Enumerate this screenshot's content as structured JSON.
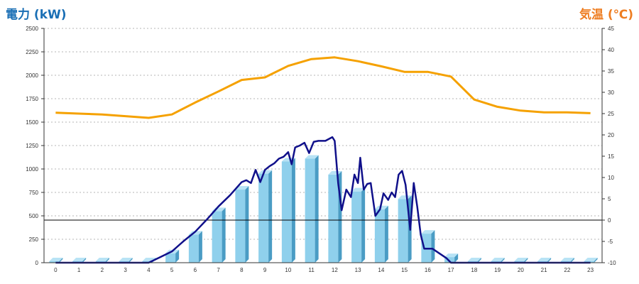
{
  "chart_data": {
    "type": "bar",
    "y_left_label": "電力 (kW)",
    "y_right_label": "気温 (℃)",
    "categories": [
      "0",
      "1",
      "2",
      "3",
      "4",
      "5",
      "6",
      "7",
      "8",
      "9",
      "10",
      "11",
      "12",
      "13",
      "14",
      "15",
      "16",
      "17",
      "18",
      "19",
      "20",
      "21",
      "22",
      "23"
    ],
    "y_left_ticks": [
      0,
      250,
      500,
      750,
      1000,
      1250,
      1500,
      1750,
      2000,
      2250,
      2500
    ],
    "y_right_ticks": [
      -10,
      -5,
      0,
      5,
      10,
      15,
      20,
      25,
      30,
      35,
      40,
      45
    ],
    "ylim_left": [
      0,
      2500
    ],
    "ylim_right": [
      -10,
      45
    ],
    "grid": true,
    "colors": {
      "bars": "#8fd0ec",
      "bars_side": "#4a9cc4",
      "bars_top": "#b8e3f5",
      "power_line": "#10108a",
      "temperature_line": "#f5a100",
      "left_axis_label": "#1a6fb5",
      "right_axis_label": "#ee7d21",
      "zero_line": "#000000"
    },
    "series": [
      {
        "type": "bar",
        "axis": "left",
        "values": [
          15,
          15,
          15,
          15,
          15,
          100,
          300,
          550,
          780,
          950,
          1080,
          1110,
          940,
          760,
          570,
          680,
          310,
          60,
          15,
          15,
          15,
          15,
          15,
          15
        ]
      },
      {
        "type": "line",
        "axis": "left",
        "x": [
          0,
          1,
          2,
          3,
          4,
          4.5,
          5,
          5.5,
          6,
          6.5,
          7,
          7.5,
          8,
          8.2,
          8.4,
          8.6,
          8.8,
          9,
          9.2,
          9.4,
          9.6,
          9.8,
          10,
          10.15,
          10.3,
          10.5,
          10.7,
          10.9,
          11.1,
          11.3,
          11.6,
          11.9,
          12,
          12.15,
          12.3,
          12.5,
          12.7,
          12.85,
          13,
          13.1,
          13.25,
          13.4,
          13.55,
          13.75,
          13.95,
          14.1,
          14.3,
          14.45,
          14.6,
          14.75,
          14.9,
          15.05,
          15.25,
          15.4,
          15.55,
          15.7,
          15.85,
          16,
          16.2,
          16.5,
          16.8,
          17,
          17.5,
          18,
          19,
          20,
          21,
          22,
          23
        ],
        "values": [
          0,
          0,
          0,
          0,
          0,
          60,
          120,
          230,
          330,
          460,
          600,
          720,
          860,
          880,
          850,
          990,
          860,
          990,
          1030,
          1060,
          1110,
          1130,
          1180,
          1050,
          1230,
          1250,
          1280,
          1170,
          1290,
          1300,
          1300,
          1340,
          1300,
          850,
          560,
          780,
          700,
          940,
          850,
          1120,
          780,
          840,
          850,
          500,
          570,
          740,
          670,
          750,
          700,
          940,
          980,
          830,
          350,
          850,
          600,
          300,
          150,
          150,
          150,
          100,
          50,
          0,
          0,
          0,
          0,
          0,
          0,
          0,
          0
        ]
      },
      {
        "type": "line",
        "axis": "right",
        "values": [
          25.2,
          25,
          24.8,
          24.4,
          24,
          24.8,
          27.6,
          30.2,
          32.9,
          33.5,
          36.2,
          37.8,
          38.2,
          37.3,
          36.1,
          34.8,
          34.8,
          33.7,
          28.3,
          26.6,
          25.7,
          25.3,
          25.3,
          25.1
        ]
      }
    ]
  }
}
